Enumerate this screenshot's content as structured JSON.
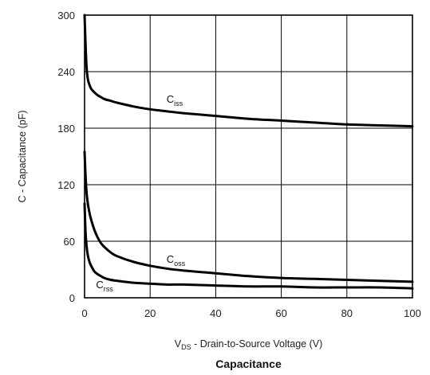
{
  "chart_data": {
    "type": "line",
    "title": "Capacitance",
    "xlabel": {
      "prefix": "V",
      "sub": "DS",
      "suffix": " - Drain-to-Source Voltage (V)"
    },
    "ylabel": "C - Capacitance (pF)",
    "xlim": [
      0,
      100
    ],
    "ylim": [
      0,
      300
    ],
    "xticks": [
      0,
      20,
      40,
      60,
      80,
      100
    ],
    "yticks": [
      0,
      60,
      120,
      180,
      240,
      300
    ],
    "grid": true,
    "series": [
      {
        "name": "Ciss",
        "name_main": "C",
        "name_sub": "iss",
        "x": [
          0,
          0.3,
          0.6,
          1,
          1.5,
          2,
          3,
          4,
          5,
          6,
          8,
          10,
          15,
          20,
          25,
          30,
          40,
          50,
          60,
          70,
          80,
          90,
          100
        ],
        "y": [
          300,
          270,
          245,
          232,
          226,
          222,
          218,
          215,
          213,
          211,
          209,
          207,
          203,
          200,
          198,
          196,
          193,
          190,
          188,
          186,
          184,
          183,
          182
        ]
      },
      {
        "name": "Coss",
        "name_main": "C",
        "name_sub": "oss",
        "x": [
          0,
          0.3,
          0.6,
          1,
          1.5,
          2,
          3,
          4,
          5,
          6,
          8,
          10,
          15,
          20,
          25,
          30,
          40,
          50,
          60,
          70,
          80,
          90,
          100
        ],
        "y": [
          155,
          130,
          112,
          100,
          90,
          83,
          72,
          64,
          58,
          54,
          48,
          44,
          38,
          34,
          31,
          29,
          26,
          23,
          21,
          20,
          19,
          18,
          17
        ]
      },
      {
        "name": "Crss",
        "name_main": "C",
        "name_sub": "rss",
        "x": [
          0,
          0.3,
          0.6,
          1,
          1.5,
          2,
          3,
          4,
          5,
          6,
          8,
          10,
          15,
          20,
          25,
          30,
          40,
          50,
          60,
          70,
          80,
          90,
          100
        ],
        "y": [
          100,
          70,
          55,
          45,
          38,
          34,
          28,
          25,
          23,
          21,
          19,
          18,
          16,
          15,
          14,
          14,
          13,
          12,
          12,
          11,
          11,
          11,
          10
        ]
      }
    ],
    "annotations": [
      {
        "series": "Ciss",
        "x": 25,
        "y": 207
      },
      {
        "series": "Coss",
        "x": 25,
        "y": 37
      },
      {
        "series": "Crss",
        "x": 3.5,
        "y": 10
      }
    ]
  }
}
